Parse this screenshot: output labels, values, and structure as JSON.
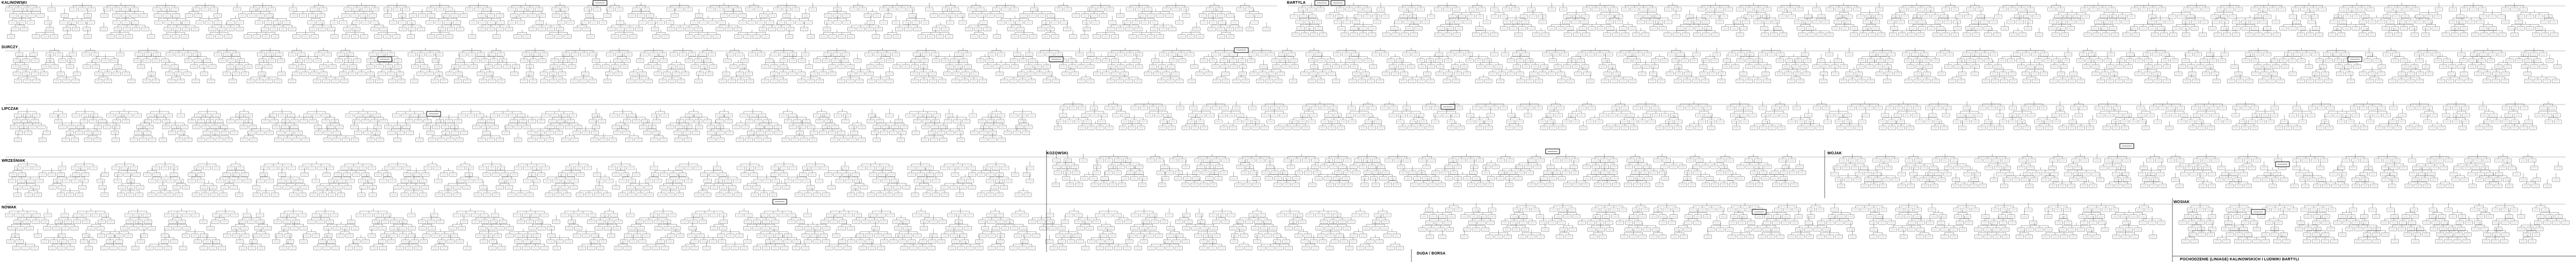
{
  "sections": {
    "kalinowski": "KALINOWSKI",
    "bartyla": "BARTYLA",
    "durczy": "DURCZY",
    "lipczak": "LIPCZAK",
    "wrzesniak": "WRZEŚNIAK",
    "kozowski": "KOZOWSKI",
    "wojak": "WOJAK",
    "wosiak": "WOSIAK",
    "nowak": "NOWAK",
    "duda": "DUDA / BORSA",
    "footer": "POCHODZENIE (LINIAGE) KALINOWSKICH I LUDWIKI BARTYLI"
  },
  "colors": {
    "line": "#5a5a5a",
    "box_border": "#7a7a7a",
    "box_fill": "#ffffff",
    "separator": "#222222"
  }
}
